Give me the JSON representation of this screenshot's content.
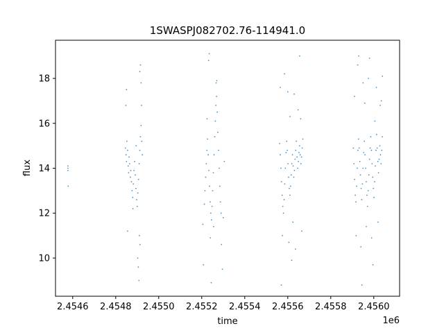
{
  "chart_data": {
    "type": "scatter",
    "title": "1SWASPJ082702.76-114941.0",
    "xlabel": "time",
    "ylabel": "flux",
    "x_offset_label": "1e6",
    "xlim": [
      2454520,
      2456120
    ],
    "ylim": [
      8.3,
      19.7
    ],
    "x_ticks": [
      2454600,
      2454800,
      2455000,
      2455200,
      2455400,
      2455600,
      2455800,
      2456000
    ],
    "x_tick_labels": [
      "2.4546",
      "2.4548",
      "2.4550",
      "2.4552",
      "2.4554",
      "2.4556",
      "2.4558",
      "2.4560"
    ],
    "y_ticks": [
      10,
      12,
      14,
      16,
      18
    ],
    "y_tick_labels": [
      "10",
      "12",
      "14",
      "16",
      "18"
    ],
    "grid": false,
    "legend": "none",
    "series_color": "#1f77b4",
    "points": [
      [
        2454578,
        14.0
      ],
      [
        2454578,
        13.9
      ],
      [
        2454579,
        13.2
      ],
      [
        2454578,
        14.1
      ],
      [
        2454845,
        14.9
      ],
      [
        2454848,
        14.6
      ],
      [
        2454850,
        14.3
      ],
      [
        2454852,
        15.2
      ],
      [
        2454855,
        14.8
      ],
      [
        2454858,
        14.1
      ],
      [
        2454860,
        13.8
      ],
      [
        2454862,
        14.5
      ],
      [
        2454865,
        14.2
      ],
      [
        2454868,
        13.6
      ],
      [
        2454870,
        13.9
      ],
      [
        2454873,
        13.4
      ],
      [
        2454876,
        13.0
      ],
      [
        2454879,
        12.7
      ],
      [
        2454882,
        13.3
      ],
      [
        2454885,
        13.9
      ],
      [
        2454888,
        14.3
      ],
      [
        2454891,
        13.7
      ],
      [
        2454894,
        13.1
      ],
      [
        2454897,
        12.6
      ],
      [
        2454900,
        12.3
      ],
      [
        2454903,
        12.9
      ],
      [
        2454906,
        13.5
      ],
      [
        2454909,
        14.2
      ],
      [
        2454912,
        14.8
      ],
      [
        2454915,
        15.4
      ],
      [
        2454918,
        15.9
      ],
      [
        2454921,
        15.2
      ],
      [
        2454924,
        14.6
      ],
      [
        2454847,
        16.8
      ],
      [
        2454850,
        17.5
      ],
      [
        2454855,
        11.2
      ],
      [
        2454902,
        10.0
      ],
      [
        2454905,
        9.6
      ],
      [
        2454908,
        9.0
      ],
      [
        2454912,
        18.3
      ],
      [
        2454915,
        18.6
      ],
      [
        2454918,
        17.8
      ],
      [
        2454910,
        11.0
      ],
      [
        2454913,
        10.6
      ],
      [
        2454920,
        16.8
      ],
      [
        2454880,
        12.2
      ],
      [
        2454895,
        15.0
      ],
      [
        2455212,
        12.4
      ],
      [
        2455215,
        13.0
      ],
      [
        2455218,
        13.6
      ],
      [
        2455221,
        14.2
      ],
      [
        2455224,
        14.8
      ],
      [
        2455227,
        15.3
      ],
      [
        2455230,
        14.6
      ],
      [
        2455233,
        13.9
      ],
      [
        2455236,
        13.2
      ],
      [
        2455239,
        12.5
      ],
      [
        2455242,
        12.0
      ],
      [
        2455245,
        11.7
      ],
      [
        2455248,
        12.3
      ],
      [
        2455251,
        13.0
      ],
      [
        2455254,
        13.8
      ],
      [
        2455257,
        14.6
      ],
      [
        2455260,
        15.4
      ],
      [
        2455263,
        16.1
      ],
      [
        2455266,
        16.8
      ],
      [
        2455269,
        17.2
      ],
      [
        2455272,
        16.5
      ],
      [
        2455275,
        15.6
      ],
      [
        2455278,
        14.8
      ],
      [
        2455281,
        14.0
      ],
      [
        2455284,
        13.2
      ],
      [
        2455287,
        12.5
      ],
      [
        2455290,
        12.0
      ],
      [
        2455205,
        11.5
      ],
      [
        2455208,
        9.7
      ],
      [
        2455232,
        18.8
      ],
      [
        2455235,
        19.1
      ],
      [
        2455240,
        10.9
      ],
      [
        2455244,
        8.9
      ],
      [
        2455267,
        17.8
      ],
      [
        2455270,
        17.9
      ],
      [
        2455292,
        10.6
      ],
      [
        2455296,
        9.5
      ],
      [
        2455300,
        11.8
      ],
      [
        2455305,
        14.3
      ],
      [
        2455225,
        16.2
      ],
      [
        2455255,
        11.4
      ],
      [
        2455562,
        15.1
      ],
      [
        2455565,
        14.6
      ],
      [
        2455568,
        14.0
      ],
      [
        2455571,
        13.4
      ],
      [
        2455574,
        12.8
      ],
      [
        2455577,
        12.3
      ],
      [
        2455580,
        12.0
      ],
      [
        2455583,
        12.6
      ],
      [
        2455586,
        13.3
      ],
      [
        2455589,
        14.0
      ],
      [
        2455592,
        14.7
      ],
      [
        2455595,
        15.2
      ],
      [
        2455598,
        14.8
      ],
      [
        2455601,
        14.2
      ],
      [
        2455604,
        13.6
      ],
      [
        2455607,
        13.1
      ],
      [
        2455610,
        12.8
      ],
      [
        2455613,
        13.2
      ],
      [
        2455616,
        13.7
      ],
      [
        2455619,
        14.2
      ],
      [
        2455622,
        14.6
      ],
      [
        2455625,
        14.1
      ],
      [
        2455628,
        13.6
      ],
      [
        2455631,
        13.9
      ],
      [
        2455634,
        14.4
      ],
      [
        2455637,
        14.8
      ],
      [
        2455640,
        15.2
      ],
      [
        2455643,
        14.5
      ],
      [
        2455646,
        14.0
      ],
      [
        2455649,
        14.3
      ],
      [
        2455652,
        14.7
      ],
      [
        2455655,
        15.0
      ],
      [
        2455658,
        14.6
      ],
      [
        2455661,
        14.2
      ],
      [
        2455664,
        14.5
      ],
      [
        2455667,
        14.9
      ],
      [
        2455670,
        15.3
      ],
      [
        2455565,
        17.6
      ],
      [
        2455575,
        11.0
      ],
      [
        2455585,
        18.2
      ],
      [
        2455600,
        17.4
      ],
      [
        2455605,
        10.7
      ],
      [
        2455610,
        16.3
      ],
      [
        2455618,
        9.9
      ],
      [
        2455624,
        11.6
      ],
      [
        2455630,
        17.3
      ],
      [
        2455636,
        10.4
      ],
      [
        2455648,
        16.6
      ],
      [
        2455655,
        19.0
      ],
      [
        2455660,
        16.2
      ],
      [
        2455665,
        11.2
      ],
      [
        2455570,
        8.8
      ],
      [
        2455905,
        14.9
      ],
      [
        2455908,
        14.2
      ],
      [
        2455911,
        13.5
      ],
      [
        2455914,
        12.8
      ],
      [
        2455917,
        12.5
      ],
      [
        2455920,
        13.2
      ],
      [
        2455923,
        14.0
      ],
      [
        2455926,
        14.8
      ],
      [
        2455929,
        15.3
      ],
      [
        2455932,
        14.9
      ],
      [
        2455935,
        14.3
      ],
      [
        2455938,
        13.7
      ],
      [
        2455941,
        13.1
      ],
      [
        2455944,
        12.6
      ],
      [
        2455947,
        13.3
      ],
      [
        2455950,
        14.0
      ],
      [
        2455953,
        14.7
      ],
      [
        2455956,
        15.2
      ],
      [
        2455959,
        14.6
      ],
      [
        2455962,
        14.0
      ],
      [
        2455965,
        13.4
      ],
      [
        2455968,
        12.8
      ],
      [
        2455971,
        12.3
      ],
      [
        2455974,
        13.0
      ],
      [
        2455977,
        13.7
      ],
      [
        2455980,
        14.4
      ],
      [
        2455983,
        14.9
      ],
      [
        2455986,
        15.4
      ],
      [
        2455989,
        14.8
      ],
      [
        2455992,
        14.2
      ],
      [
        2455995,
        13.6
      ],
      [
        2455998,
        13.1
      ],
      [
        2456001,
        12.7
      ],
      [
        2456004,
        13.4
      ],
      [
        2456007,
        14.1
      ],
      [
        2456010,
        14.8
      ],
      [
        2456013,
        15.5
      ],
      [
        2456016,
        14.9
      ],
      [
        2456019,
        14.3
      ],
      [
        2456022,
        13.8
      ],
      [
        2456025,
        14.4
      ],
      [
        2456028,
        15.0
      ],
      [
        2456031,
        14.6
      ],
      [
        2456034,
        14.2
      ],
      [
        2456037,
        14.8
      ],
      [
        2456040,
        15.4
      ],
      [
        2455910,
        17.2
      ],
      [
        2455918,
        11.0
      ],
      [
        2455925,
        18.6
      ],
      [
        2455930,
        19.0
      ],
      [
        2455940,
        10.5
      ],
      [
        2455945,
        8.8
      ],
      [
        2455950,
        17.8
      ],
      [
        2455958,
        16.9
      ],
      [
        2455965,
        11.4
      ],
      [
        2455975,
        18.0
      ],
      [
        2455980,
        18.9
      ],
      [
        2455990,
        10.9
      ],
      [
        2455996,
        9.7
      ],
      [
        2456005,
        16.1
      ],
      [
        2456012,
        17.6
      ],
      [
        2456020,
        11.6
      ],
      [
        2456030,
        16.8
      ],
      [
        2456040,
        18.1
      ],
      [
        2456035,
        17.0
      ]
    ]
  }
}
